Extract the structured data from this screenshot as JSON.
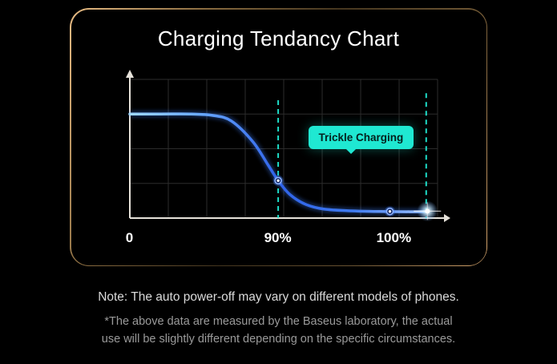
{
  "colors": {
    "accent_cyan": "#1FE8D2",
    "curve_blue": "#3E7BF2",
    "border_gold": "#D9A76E",
    "background": "#000000"
  },
  "card": {
    "title": "Charging Tendancy Chart"
  },
  "notes": {
    "line1": "Note: The auto power-off may vary on different models of phones.",
    "line2": "*The above data are measured by the Baseus laboratory, the actual\nuse will be slightly different depending on the specific circumstances."
  },
  "chart_data": {
    "type": "line",
    "title": "Charging Tendancy Chart",
    "x_ticks": [
      {
        "label": "0",
        "x": 0
      },
      {
        "label": "90%",
        "x": 0.482
      },
      {
        "label": "100%",
        "x": 0.859
      }
    ],
    "annotation": {
      "label": "Trickle Charging"
    },
    "grid": {
      "cols": 8,
      "rows": 4,
      "visible": true
    },
    "axis_color": "#E6E2DA",
    "grid_color": "#2C2C2C",
    "dashed_lines": [
      {
        "x": 0.482,
        "y_top": 0.85
      },
      {
        "x": 0.963,
        "y_top": 0.9
      }
    ],
    "series": [
      {
        "name": "charge-curve",
        "gradient": [
          "#9FD8FF",
          "#66A6FF",
          "#2F62E8",
          "#3F7BF0",
          "#9FC4FF"
        ],
        "points": [
          [
            0.0,
            0.75
          ],
          [
            0.1,
            0.75
          ],
          [
            0.2,
            0.75
          ],
          [
            0.27,
            0.74
          ],
          [
            0.33,
            0.7
          ],
          [
            0.4,
            0.55
          ],
          [
            0.45,
            0.38
          ],
          [
            0.482,
            0.27
          ],
          [
            0.52,
            0.17
          ],
          [
            0.57,
            0.1
          ],
          [
            0.63,
            0.065
          ],
          [
            0.72,
            0.052
          ],
          [
            0.8,
            0.048
          ],
          [
            0.86,
            0.046
          ],
          [
            0.97,
            0.046
          ]
        ]
      }
    ],
    "markers": [
      {
        "name": "trickle-start-point",
        "x": 0.482,
        "y": 0.27,
        "type": "point"
      },
      {
        "name": "full-charge-point",
        "x": 0.845,
        "y": 0.048,
        "type": "point"
      },
      {
        "name": "power-off-glow",
        "x": 0.967,
        "y": 0.05,
        "type": "end-glow"
      }
    ]
  }
}
